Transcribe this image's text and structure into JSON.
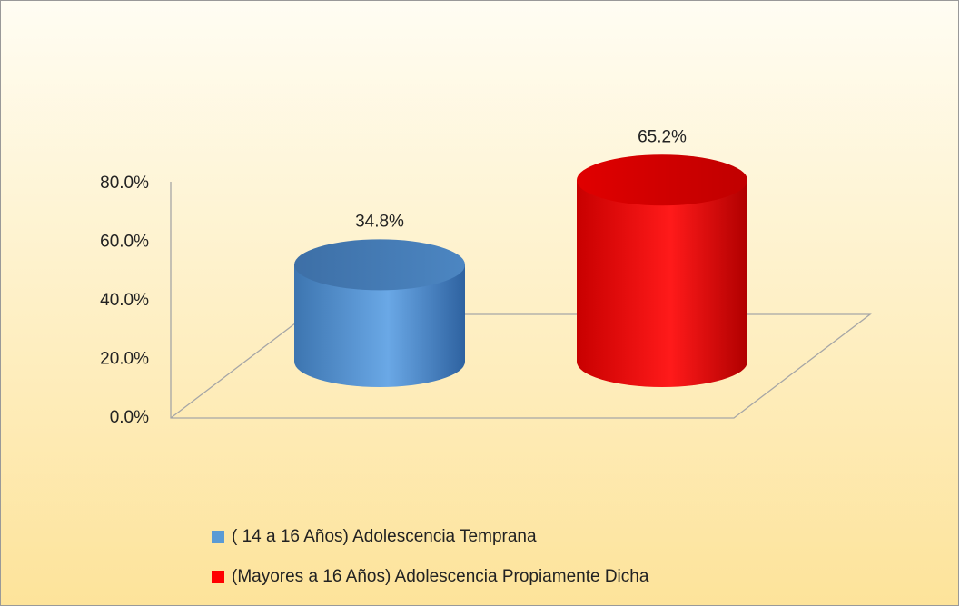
{
  "chart_data": {
    "type": "cylinder",
    "series": [
      {
        "name": "( 14  a  16 Años) Adolescencia Temprana",
        "color": "#5b9bd5",
        "values": [
          34.8
        ],
        "value_labels": [
          "34.8%"
        ]
      },
      {
        "name": "(Mayores a 16 Años) Adolescencia Propiamente Dicha",
        "color": "#ff0000",
        "values": [
          65.2
        ],
        "value_labels": [
          "65.2%"
        ]
      }
    ],
    "ylim": [
      0,
      80
    ],
    "yticks": [
      {
        "value": 0,
        "label": "0.0%"
      },
      {
        "value": 20,
        "label": "20.0%"
      },
      {
        "value": 40,
        "label": "40.0%"
      },
      {
        "value": 60,
        "label": "60.0%"
      },
      {
        "value": 80,
        "label": "80.0%"
      }
    ],
    "legend": "bottom"
  }
}
